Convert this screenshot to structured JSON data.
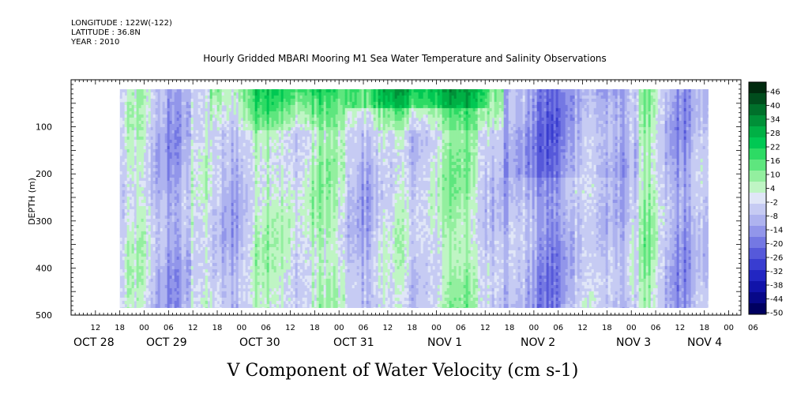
{
  "header": {
    "longitude": "LONGITUDE : 122W(-122)",
    "latitude": "LATITUDE : 36.8N",
    "year": "YEAR : 2010",
    "title": "Hourly Gridded MBARI Mooring M1 Sea Water Temperature and Salinity Observations"
  },
  "chart_data": {
    "type": "heatmap",
    "title": "V Component of Water Velocity (cm s-1)",
    "xlabel": "",
    "ylabel": "DEPTH (m)",
    "x_hour_ticks": [
      "12",
      "18",
      "00",
      "06",
      "12",
      "18",
      "00",
      "06",
      "12",
      "18",
      "00",
      "06",
      "12",
      "18",
      "00",
      "06",
      "12",
      "18",
      "00",
      "06",
      "12",
      "18",
      "00",
      "06",
      "12",
      "18",
      "00",
      "06"
    ],
    "x_day_labels": [
      "OCT 28",
      "OCT 29",
      "OCT 30",
      "OCT 31",
      "NOV 1",
      "NOV 2",
      "NOV 3",
      "NOV 4"
    ],
    "y_ticks": [
      100,
      200,
      300,
      400,
      500
    ],
    "ylim": [
      500,
      0
    ],
    "data_extent": {
      "time_start_hours_after_oct28_00": 18,
      "time_end_hours_after_oct28_00": 163,
      "depth_top": 20,
      "depth_bottom": 485
    },
    "colorbar": {
      "ticks": [
        46,
        40,
        34,
        28,
        22,
        16,
        10,
        4,
        -2,
        -8,
        -14,
        -20,
        -26,
        -32,
        -38,
        -44,
        -50
      ],
      "colors": [
        "#002a0e",
        "#004d1d",
        "#00702b",
        "#009038",
        "#00b045",
        "#00c853",
        "#2ddb64",
        "#5ee67e",
        "#93ef9f",
        "#bff5c4",
        "#e0e6f7",
        "#c6cbf3",
        "#aeb3ef",
        "#9296ea",
        "#7478e3",
        "#5659da",
        "#393dd0",
        "#2226c2",
        "#1113a9",
        "#070888",
        "#000060"
      ],
      "range": [
        -50,
        50
      ]
    },
    "notes": "V velocity section: mostly light positive/negative values (-14 to 16 cm/s); stronger northward flow near surface on Oct 29-Nov 1; southward bands Nov 1-3."
  }
}
